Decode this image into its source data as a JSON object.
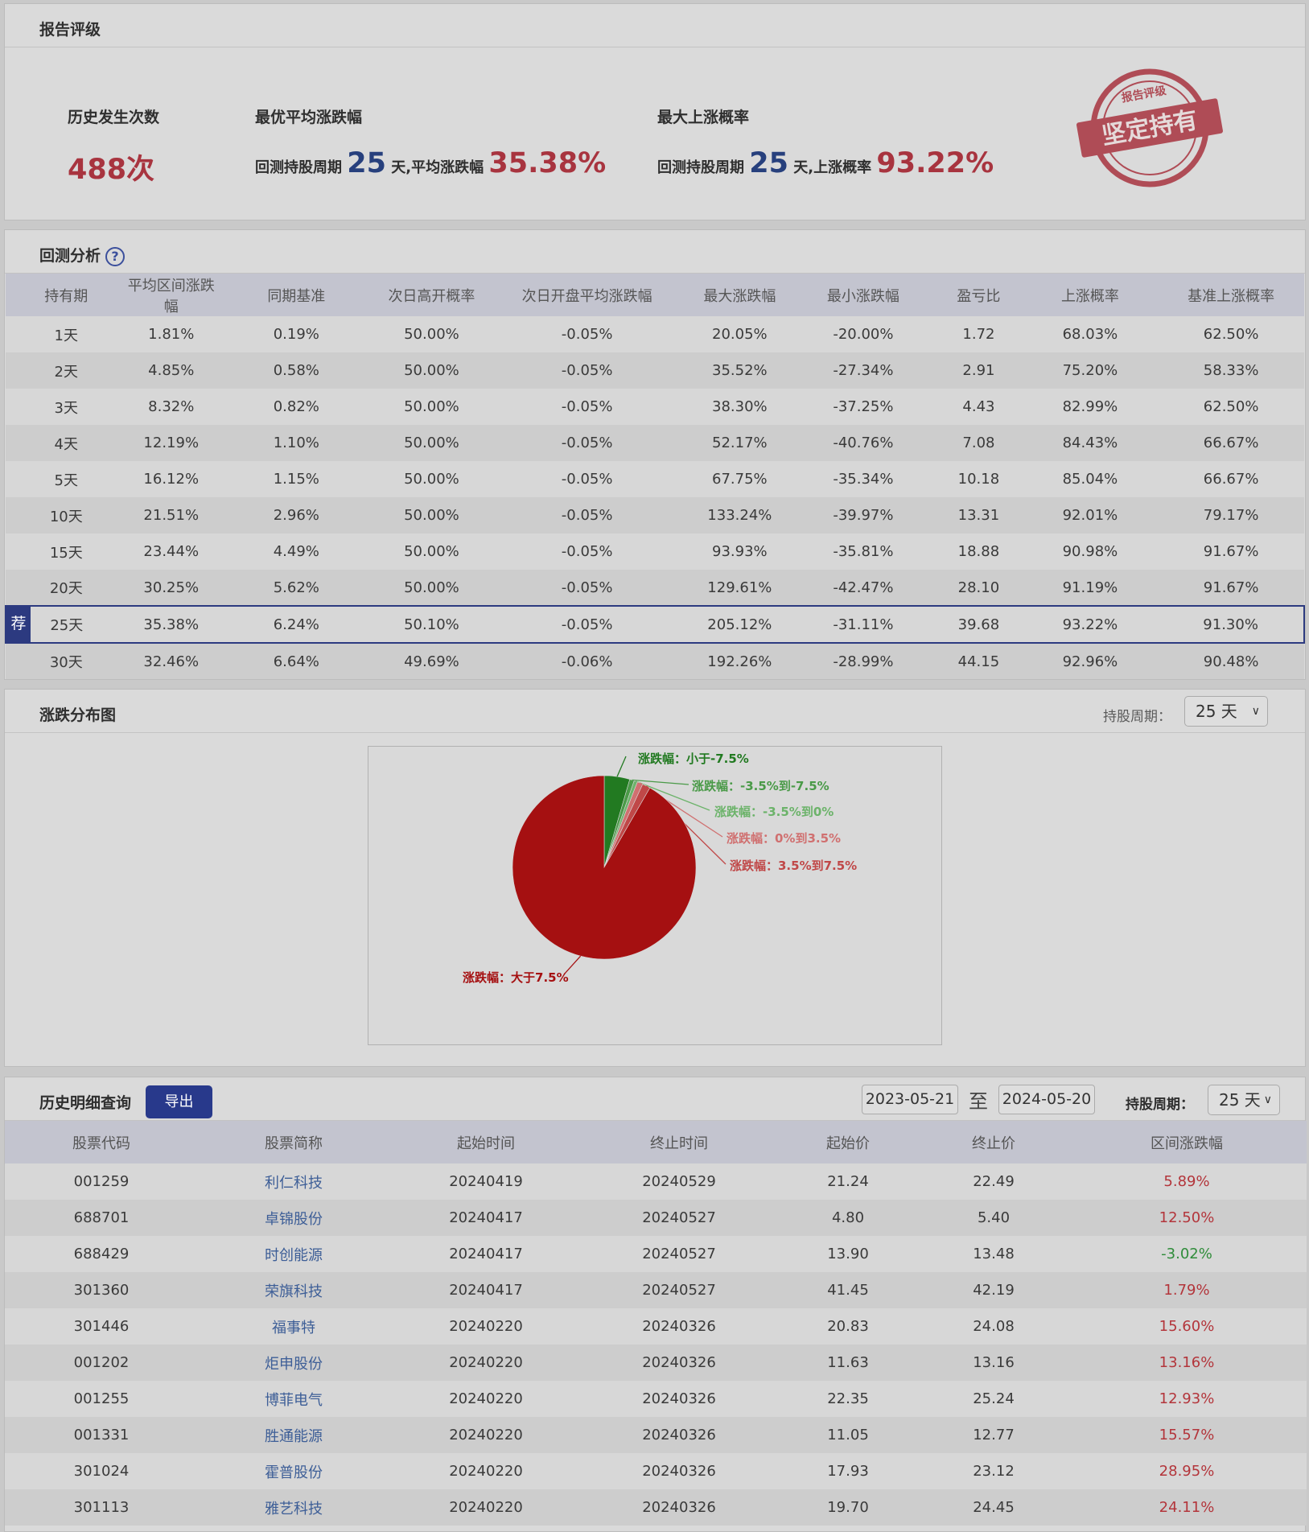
{
  "rating": {
    "title": "报告评级",
    "count_label": "历史发生次数",
    "count_value": "488次",
    "best_label": "最优平均涨跌幅",
    "best_prefix": "回测持股周期",
    "best_days": "25",
    "best_mid": "天,平均涨跌幅",
    "best_value": "35.38%",
    "prob_label": "最大上涨概率",
    "prob_prefix": "回测持股周期",
    "prob_days": "25",
    "prob_mid": "天,上涨概率",
    "prob_value": "93.22%",
    "stamp_top": "报告评级",
    "stamp_main": "坚定持有"
  },
  "backtest": {
    "title": "回测分析",
    "help_icon": "?",
    "recommend_tag": "荐",
    "headers": [
      "持有期",
      "平均区间涨跌幅",
      "同期基准",
      "次日高开概率",
      "次日开盘平均涨跌幅",
      "最大涨跌幅",
      "最小涨跌幅",
      "盈亏比",
      "上涨概率",
      "基准上涨概率"
    ],
    "rows": [
      [
        "1天",
        "1.81%",
        "0.19%",
        "50.00%",
        "-0.05%",
        "20.05%",
        "-20.00%",
        "1.72",
        "68.03%",
        "62.50%"
      ],
      [
        "2天",
        "4.85%",
        "0.58%",
        "50.00%",
        "-0.05%",
        "35.52%",
        "-27.34%",
        "2.91",
        "75.20%",
        "58.33%"
      ],
      [
        "3天",
        "8.32%",
        "0.82%",
        "50.00%",
        "-0.05%",
        "38.30%",
        "-37.25%",
        "4.43",
        "82.99%",
        "62.50%"
      ],
      [
        "4天",
        "12.19%",
        "1.10%",
        "50.00%",
        "-0.05%",
        "52.17%",
        "-40.76%",
        "7.08",
        "84.43%",
        "66.67%"
      ],
      [
        "5天",
        "16.12%",
        "1.15%",
        "50.00%",
        "-0.05%",
        "67.75%",
        "-35.34%",
        "10.18",
        "85.04%",
        "66.67%"
      ],
      [
        "10天",
        "21.51%",
        "2.96%",
        "50.00%",
        "-0.05%",
        "133.24%",
        "-39.97%",
        "13.31",
        "92.01%",
        "79.17%"
      ],
      [
        "15天",
        "23.44%",
        "4.49%",
        "50.00%",
        "-0.05%",
        "93.93%",
        "-35.81%",
        "18.88",
        "90.98%",
        "91.67%"
      ],
      [
        "20天",
        "30.25%",
        "5.62%",
        "50.00%",
        "-0.05%",
        "129.61%",
        "-42.47%",
        "28.10",
        "91.19%",
        "91.67%"
      ],
      [
        "25天",
        "35.38%",
        "6.24%",
        "50.10%",
        "-0.05%",
        "205.12%",
        "-31.11%",
        "39.68",
        "93.22%",
        "91.30%"
      ],
      [
        "30天",
        "32.46%",
        "6.64%",
        "49.69%",
        "-0.06%",
        "192.26%",
        "-28.99%",
        "44.15",
        "92.96%",
        "90.48%"
      ]
    ]
  },
  "distribution": {
    "title": "涨跌分布图",
    "period_label": "持股周期：",
    "period_value": "25 天",
    "chevron_icon": "chevron-down-icon"
  },
  "chart_data": {
    "type": "pie",
    "title": "",
    "slices": [
      {
        "label": "涨跌幅：小于-7.5%",
        "value": 4.5,
        "color": "#227a21"
      },
      {
        "label": "涨跌幅：-3.5%到-7.5%",
        "value": 0.8,
        "color": "#4a9a48"
      },
      {
        "label": "涨跌幅：-3.5%到0%",
        "value": 0.6,
        "color": "#6cb36a"
      },
      {
        "label": "涨跌幅：0%到3.5%",
        "value": 1.0,
        "color": "#d07070"
      },
      {
        "label": "涨跌幅：3.5%到7.5%",
        "value": 1.4,
        "color": "#c04848"
      },
      {
        "label": "涨跌幅：大于7.5%",
        "value": 91.7,
        "color": "#a51011"
      }
    ]
  },
  "history": {
    "title": "历史明细查询",
    "export_label": "导出",
    "date_from": "2023-05-21",
    "to_label": "至",
    "date_to": "2024-05-20",
    "period_label": "持股周期：",
    "period_value": "25 天",
    "headers": [
      "股票代码",
      "股票简称",
      "起始时间",
      "终止时间",
      "起始价",
      "终止价",
      "区间涨跌幅"
    ],
    "rows": [
      [
        "001259",
        "利仁科技",
        "20240419",
        "20240529",
        "21.24",
        "22.49",
        "5.89%"
      ],
      [
        "688701",
        "卓锦股份",
        "20240417",
        "20240527",
        "4.80",
        "5.40",
        "12.50%"
      ],
      [
        "688429",
        "时创能源",
        "20240417",
        "20240527",
        "13.90",
        "13.48",
        "-3.02%"
      ],
      [
        "301360",
        "荣旗科技",
        "20240417",
        "20240527",
        "41.45",
        "42.19",
        "1.79%"
      ],
      [
        "301446",
        "福事特",
        "20240220",
        "20240326",
        "20.83",
        "24.08",
        "15.60%"
      ],
      [
        "001202",
        "炬申股份",
        "20240220",
        "20240326",
        "11.63",
        "13.16",
        "13.16%"
      ],
      [
        "001255",
        "博菲电气",
        "20240220",
        "20240326",
        "22.35",
        "25.24",
        "12.93%"
      ],
      [
        "001331",
        "胜通能源",
        "20240220",
        "20240326",
        "11.05",
        "12.77",
        "15.57%"
      ],
      [
        "301024",
        "霍普股份",
        "20240220",
        "20240326",
        "17.93",
        "23.12",
        "28.95%"
      ],
      [
        "301113",
        "雅艺科技",
        "20240220",
        "20240326",
        "19.70",
        "24.45",
        "24.11%"
      ]
    ]
  }
}
